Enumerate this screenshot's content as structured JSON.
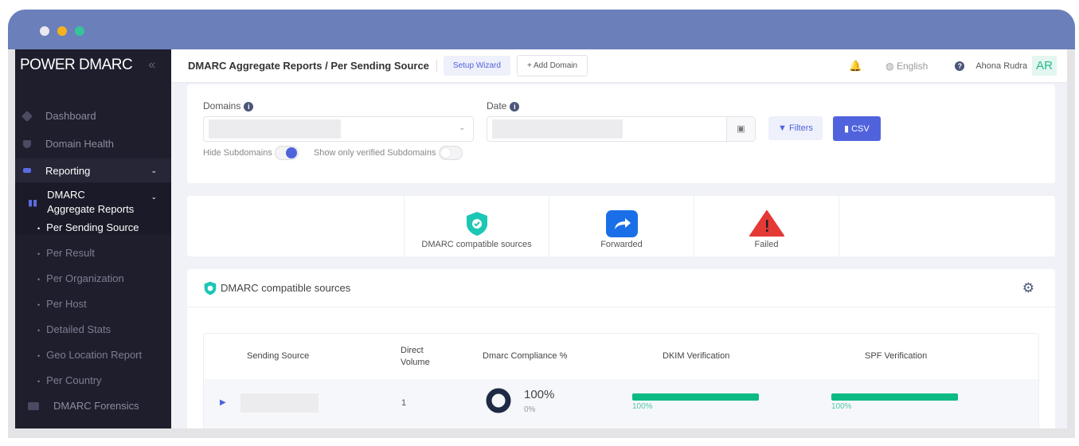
{
  "window": {
    "dots": [
      "#e9eaf0",
      "#f5b21f",
      "#35c49a"
    ],
    "titlebar_color": "#6b7fba"
  },
  "sidebar": {
    "logo": "POWER DMARC",
    "collapse_icon": "«",
    "items": [
      {
        "label": "Dashboard",
        "icon": "diamond-icon"
      },
      {
        "label": "Domain Health",
        "icon": "shield-icon"
      },
      {
        "label": "Reporting",
        "icon": "list-icon"
      },
      {
        "label": "DMARC Aggregate Reports",
        "icon": "bar-chart-icon"
      }
    ],
    "subitems": [
      "Per Sending Source",
      "Per Result",
      "Per Organization",
      "Per Host",
      "Detailed Stats",
      "Geo Location Report",
      "Per Country"
    ],
    "forensics": "DMARC Forensics"
  },
  "header": {
    "breadcrumb": "DMARC Aggregate Reports / Per Sending Source",
    "setup_wizard": "Setup Wizard",
    "add_domain": "+ Add Domain",
    "language": "English",
    "user_name": "Ahona Rudra",
    "avatar": "AR"
  },
  "filters": {
    "domains_label": "Domains",
    "date_label": "Date",
    "filters_button": "Filters",
    "csv_button": "CSV",
    "hide_subdomains": "Hide Subdomains",
    "hide_subdomains_on": true,
    "verified_subdomains": "Show only verified Subdomains",
    "verified_subdomains_on": false
  },
  "stats": [
    {
      "label": "DMARC compatible sources",
      "icon": "shield-check-icon",
      "color": "#1cc7b4"
    },
    {
      "label": "Forwarded",
      "icon": "forward-icon",
      "color": "#1a6fe8"
    },
    {
      "label": "Failed",
      "icon": "warning-icon",
      "color": "#e53935"
    }
  ],
  "section": {
    "title": "DMARC compatible sources"
  },
  "table": {
    "columns": [
      "Sending Source",
      "Direct Volume",
      "Dmarc Compliance %",
      "DKIM Verification",
      "SPF Verification"
    ],
    "rows": [
      {
        "direct_volume": "1",
        "compliance": "100%",
        "compliance_sub": "0%",
        "dkim": 100,
        "dkim_label": "100%",
        "spf": 100,
        "spf_label": "100%"
      }
    ]
  },
  "colors": {
    "accent": "#5063dd",
    "success": "#0cba85",
    "sidebar": "#1e1e2d"
  }
}
